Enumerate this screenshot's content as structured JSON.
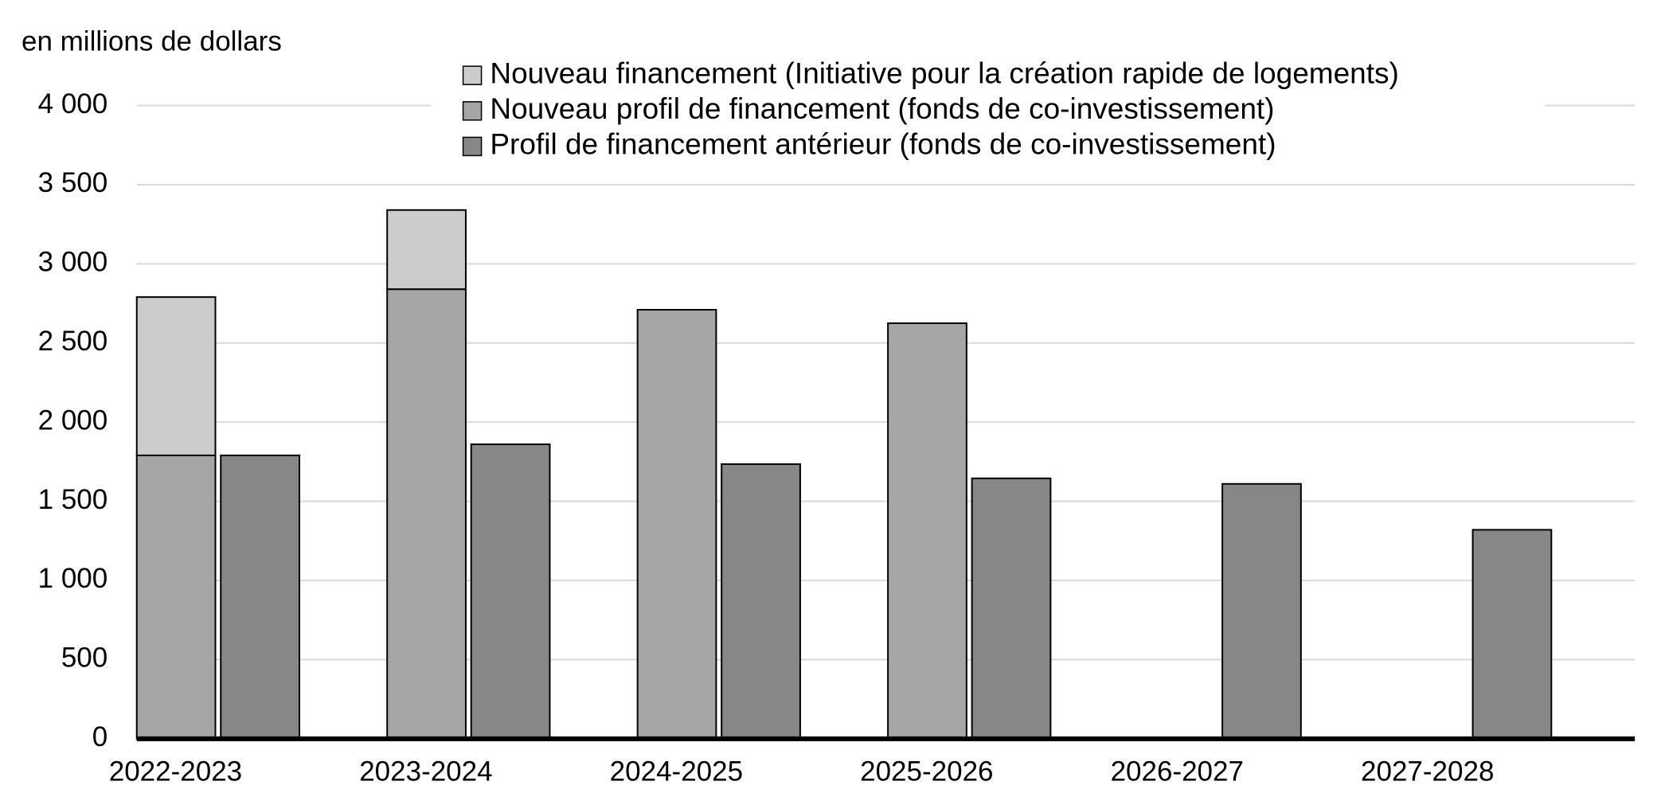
{
  "chart_data": {
    "type": "bar",
    "y_axis_label": "en millions de dollars",
    "categories": [
      "2022-2023",
      "2023-2024",
      "2024-2025",
      "2025-2026",
      "2026-2027",
      "2027-2028"
    ],
    "series": [
      {
        "name": "Nouveau financement (Initiative pour la création rapide de logements)",
        "color": "#cccccc",
        "values": [
          1000,
          500,
          null,
          null,
          null,
          null
        ]
      },
      {
        "name": "Nouveau profil de financement (fonds de co-investissement)",
        "color": "#a6a6a6",
        "values": [
          1790,
          2840,
          2710,
          2625,
          null,
          null
        ]
      },
      {
        "name": "Profil de financement antérieur (fonds de co-investissement)",
        "color": "#878787",
        "values": [
          1790,
          1860,
          1735,
          1645,
          1610,
          1320
        ]
      }
    ],
    "ylim": [
      0,
      4000
    ],
    "yticks": [
      0,
      500,
      {
        "value": 1000,
        "label": "1 000"
      },
      {
        "value": 1500,
        "label": "1 500"
      },
      {
        "value": 2000,
        "label": "2 000"
      },
      {
        "value": 2500,
        "label": "2 500"
      },
      {
        "value": 3000,
        "label": "3 000"
      },
      {
        "value": 3500,
        "label": "3 500"
      },
      {
        "value": 4000,
        "label": "4 000"
      }
    ],
    "grid": true
  }
}
